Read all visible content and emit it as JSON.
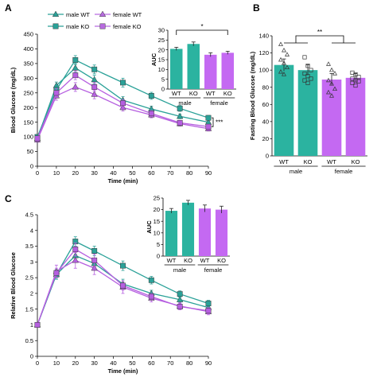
{
  "colors": {
    "wt": "#2aa198",
    "ko": "#2aa198",
    "fwt": "#bf63e6",
    "fko": "#bf63e6",
    "bar_male": "#2bb3a0",
    "bar_female": "#c469f2",
    "line_mwt": "#2aa198",
    "line_mko": "#2e9e8a",
    "line_fwt": "#9b59b6",
    "line_fko": "#b86be0"
  },
  "panels": {
    "A": "A",
    "B": "B",
    "C": "C"
  },
  "legend": [
    {
      "name": "male WT",
      "marker": "triangle",
      "color": "#2aa198"
    },
    {
      "name": "male KO",
      "marker": "square",
      "color": "#2aa198"
    },
    {
      "name": "female WT",
      "marker": "triangle",
      "color": "#b86be0"
    },
    {
      "name": "female KO",
      "marker": "square",
      "color": "#b86be0"
    }
  ],
  "chart_data": [
    {
      "panel": "A",
      "type": "line",
      "xlabel": "Time (min)",
      "ylabel": "Blood Glucose (mg/dL)",
      "x": [
        0,
        10,
        20,
        30,
        45,
        60,
        75,
        90
      ],
      "xticks": [
        0,
        10,
        20,
        30,
        40,
        50,
        60,
        70,
        80,
        90
      ],
      "xlim": [
        0,
        90
      ],
      "ylim": [
        0,
        450
      ],
      "yticks": [
        0,
        50,
        100,
        150,
        200,
        250,
        300,
        350,
        400,
        450
      ],
      "series": [
        {
          "name": "male WT",
          "values": [
            95,
            275,
            335,
            295,
            225,
            195,
            170,
            150
          ],
          "err": [
            8,
            12,
            15,
            15,
            12,
            10,
            8,
            8
          ]
        },
        {
          "name": "male KO",
          "values": [
            100,
            260,
            362,
            330,
            285,
            240,
            197,
            165
          ],
          "err": [
            8,
            15,
            15,
            15,
            15,
            12,
            10,
            8
          ]
        },
        {
          "name": "female WT",
          "values": [
            90,
            240,
            270,
            245,
            200,
            175,
            145,
            128
          ],
          "err": [
            8,
            15,
            15,
            15,
            12,
            10,
            8,
            8
          ]
        },
        {
          "name": "female KO",
          "values": [
            95,
            250,
            310,
            270,
            215,
            180,
            148,
            135
          ],
          "err": [
            8,
            15,
            15,
            15,
            12,
            10,
            8,
            8
          ]
        }
      ],
      "annotation": "***"
    },
    {
      "panel": "A-inset",
      "type": "bar",
      "ylabel": "AUC",
      "categories": [
        "WT",
        "KO",
        "WT",
        "KO"
      ],
      "groups": [
        "male",
        "female"
      ],
      "values": [
        20.5,
        23,
        17.5,
        18.5
      ],
      "err": [
        0.8,
        1.0,
        1.0,
        0.8
      ],
      "ylim": [
        0,
        30
      ],
      "yticks": [
        0,
        5,
        10,
        15,
        20,
        25,
        30
      ],
      "annotation": "*"
    },
    {
      "panel": "B",
      "type": "bar",
      "ylabel": "Fasting Blood Glucose (mg/dL)",
      "categories": [
        "WT",
        "KO",
        "WT",
        "KO"
      ],
      "groups": [
        "male",
        "female"
      ],
      "values": [
        106,
        100,
        89,
        91
      ],
      "err": [
        7,
        6,
        7,
        5
      ],
      "ylim": [
        0,
        140
      ],
      "yticks": [
        0,
        20,
        40,
        60,
        80,
        100,
        120,
        140
      ],
      "annotation": "**"
    },
    {
      "panel": "C",
      "type": "line",
      "xlabel": "Time (min)",
      "ylabel": "Relative Blood Glucose",
      "x": [
        0,
        10,
        20,
        30,
        45,
        60,
        75,
        90
      ],
      "xticks": [
        0,
        10,
        20,
        30,
        40,
        50,
        60,
        70,
        80,
        90
      ],
      "xlim": [
        0,
        90
      ],
      "ylim": [
        0,
        4.5
      ],
      "yticks": [
        0,
        0.5,
        1,
        1.5,
        2,
        2.5,
        3,
        3.5,
        4,
        4.5
      ],
      "series": [
        {
          "name": "male WT",
          "values": [
            1,
            2.6,
            3.2,
            2.95,
            2.3,
            2.0,
            1.8,
            1.55
          ],
          "err": [
            0,
            0.15,
            0.2,
            0.15,
            0.15,
            0.1,
            0.1,
            0.1
          ]
        },
        {
          "name": "male KO",
          "values": [
            1,
            2.6,
            3.65,
            3.35,
            2.88,
            2.42,
            1.98,
            1.68
          ],
          "err": [
            0,
            0.15,
            0.15,
            0.15,
            0.15,
            0.12,
            0.1,
            0.1
          ]
        },
        {
          "name": "female WT",
          "values": [
            1,
            2.7,
            3.05,
            2.8,
            2.2,
            1.85,
            1.6,
            1.42
          ],
          "err": [
            0,
            0.2,
            0.25,
            0.2,
            0.2,
            0.12,
            0.1,
            0.1
          ]
        },
        {
          "name": "female KO",
          "values": [
            1,
            2.65,
            3.4,
            3.05,
            2.25,
            1.9,
            1.58,
            1.45
          ],
          "err": [
            0,
            0.15,
            0.2,
            0.2,
            0.15,
            0.1,
            0.1,
            0.1
          ]
        }
      ]
    },
    {
      "panel": "C-inset",
      "type": "bar",
      "ylabel": "AUC",
      "categories": [
        "WT",
        "KO",
        "WT",
        "KO"
      ],
      "groups": [
        "male",
        "female"
      ],
      "values": [
        19.5,
        23,
        20.5,
        20
      ],
      "err": [
        1.0,
        1.0,
        1.5,
        1.5
      ],
      "ylim": [
        0,
        25
      ],
      "yticks": [
        0,
        5,
        10,
        15,
        20,
        25
      ]
    }
  ]
}
